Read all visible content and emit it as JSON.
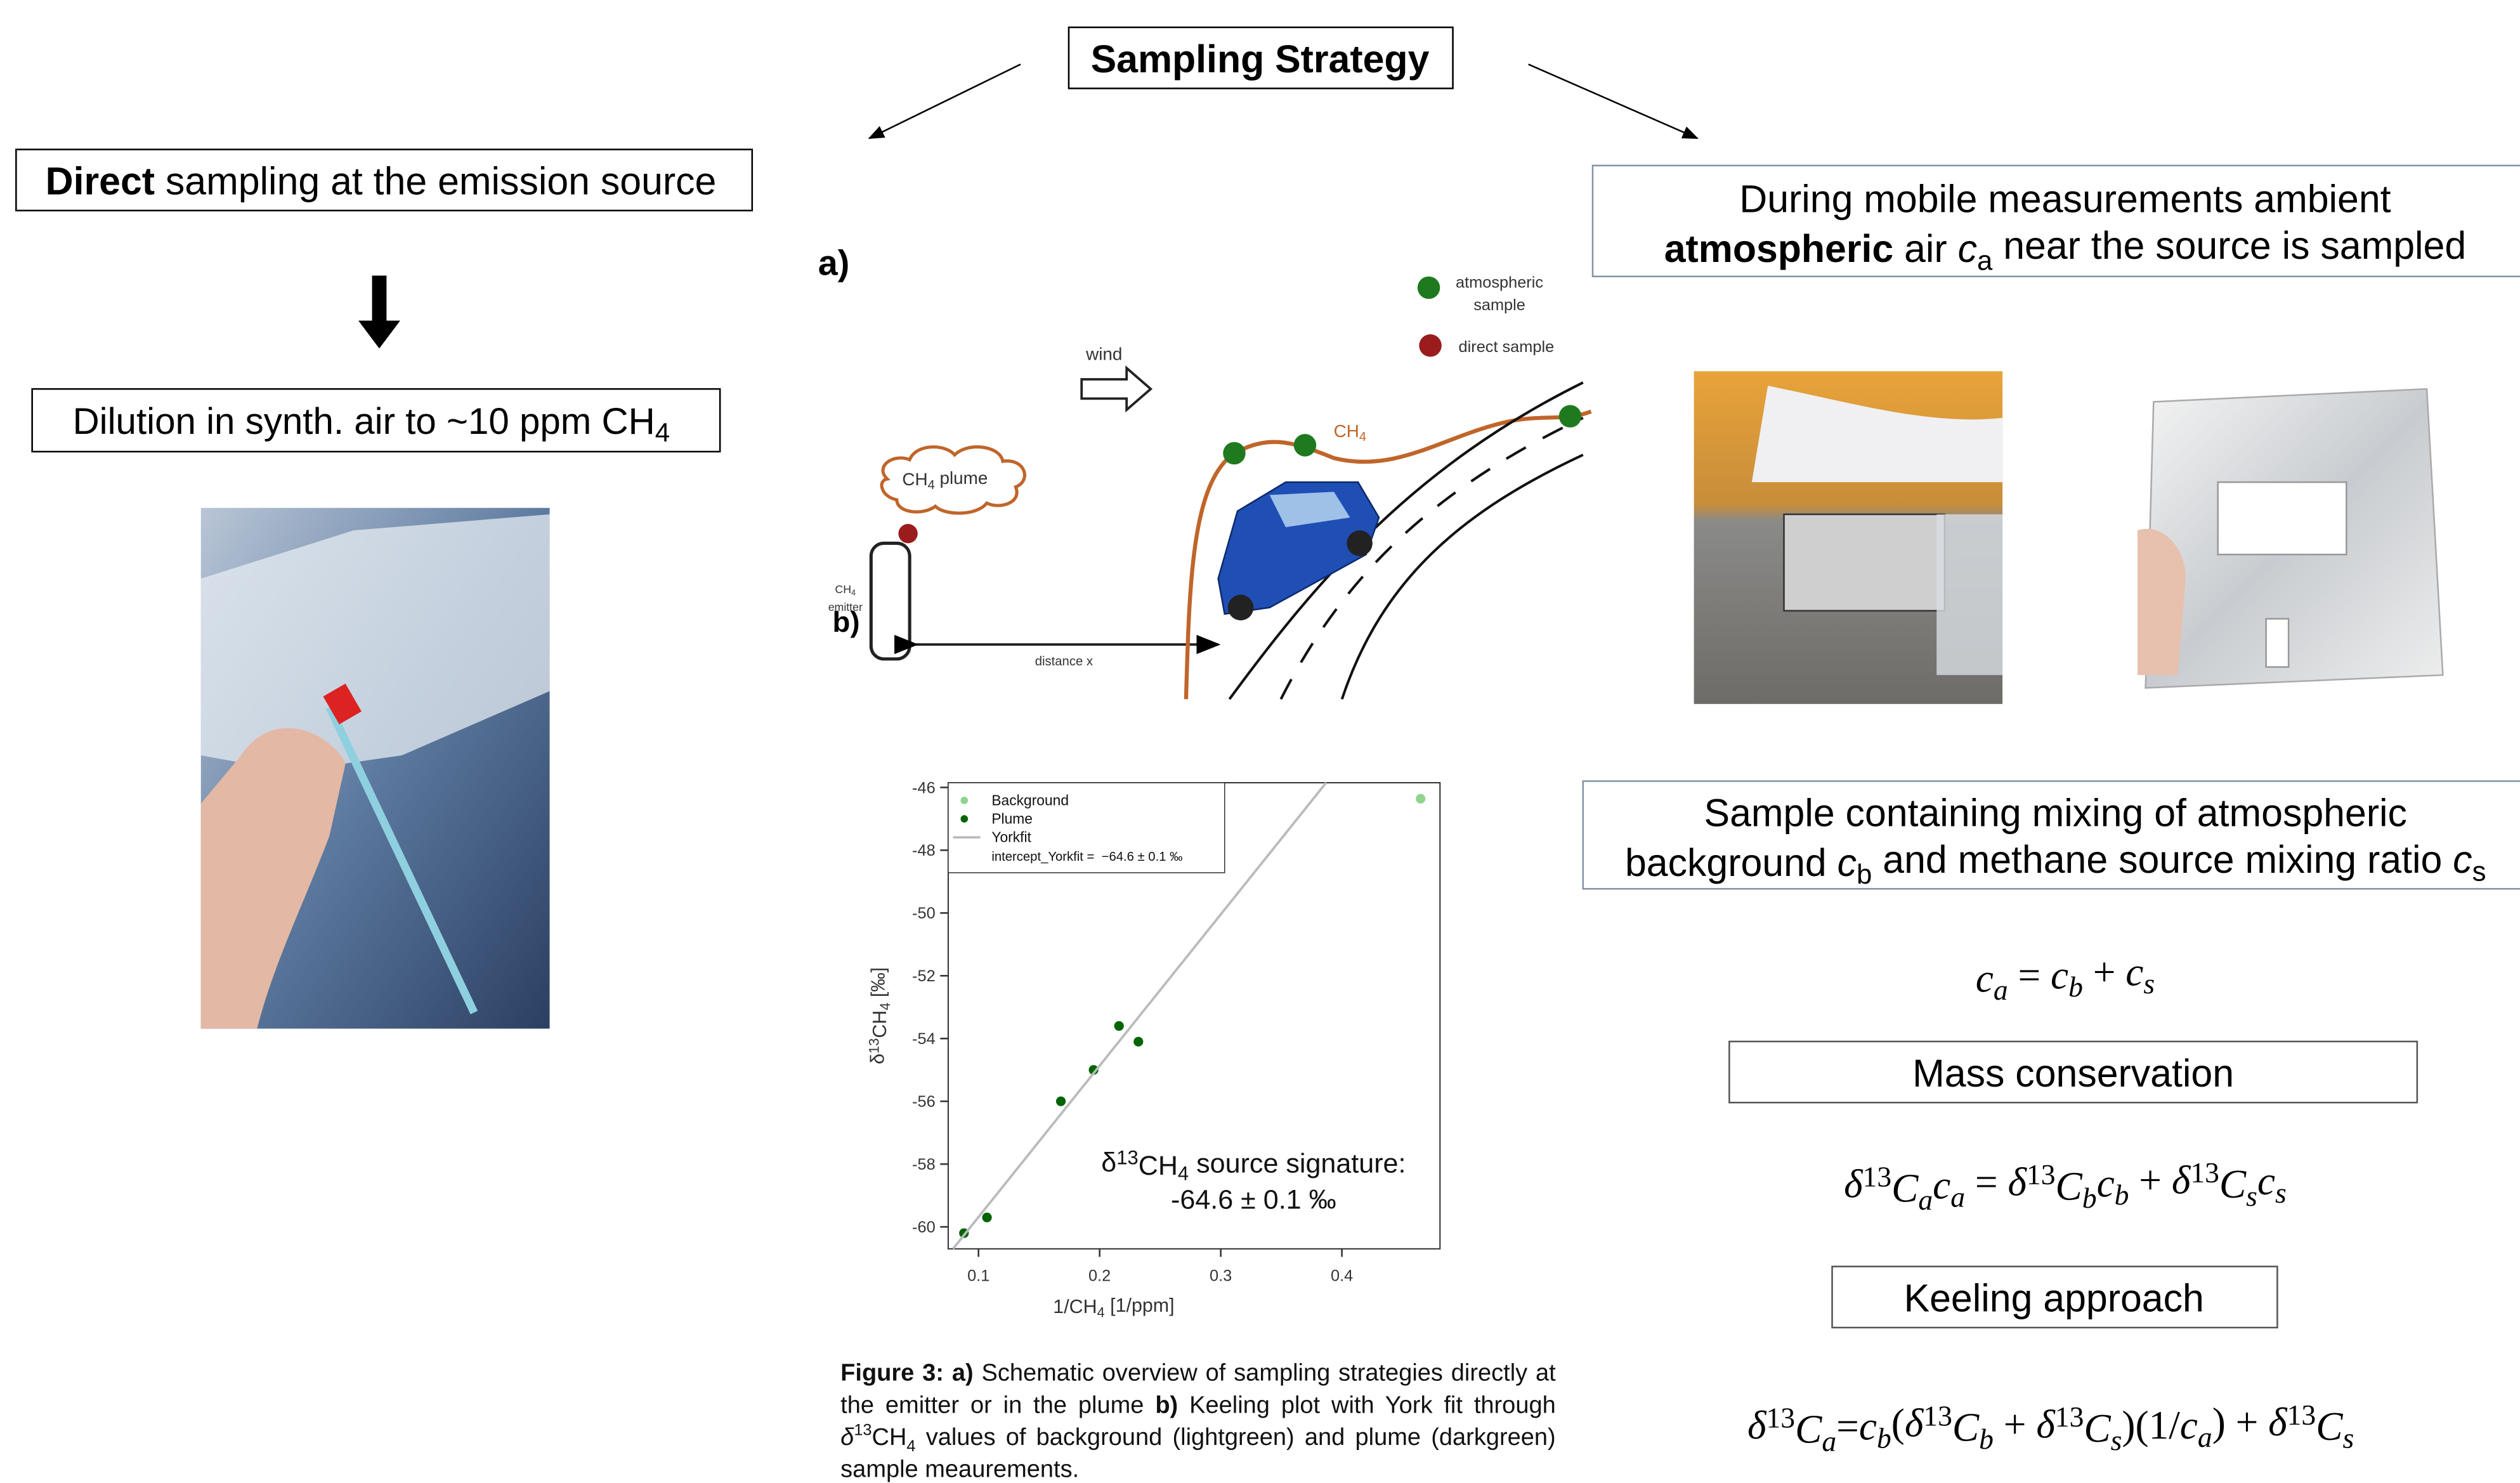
{
  "title": "Sampling Strategy",
  "left": {
    "heading": [
      {
        "bold": "Direct"
      },
      {
        "text": " sampling at the emission source"
      }
    ],
    "dilution": [
      {
        "text": "Dilution in synth. air to ~10 ppm CH"
      },
      {
        "sub": "4"
      }
    ]
  },
  "schematic": {
    "label": "a)",
    "legend": [
      [
        "atmospheric",
        "sample"
      ],
      [
        "direct sample"
      ]
    ],
    "wind": "wind",
    "gas": [
      {
        "text": "CH"
      },
      {
        "sub": "4"
      }
    ],
    "plume": [
      {
        "text": "CH"
      },
      {
        "sub": "4"
      },
      {
        "text": " plume"
      }
    ],
    "emitter": [
      [
        "CH",
        {
          "sub": "4"
        }
      ],
      "emitter"
    ],
    "distance": "distance x"
  },
  "chart_data": {
    "type": "scatter",
    "label": "b)",
    "xlabel": [
      {
        "text": "1/CH"
      },
      {
        "sub": "4"
      },
      {
        "text": " [1/ppm]"
      }
    ],
    "ylabel": [
      {
        "text": "δ"
      },
      {
        "sup": "13"
      },
      {
        "text": "CH"
      },
      {
        "sub": "4"
      },
      {
        "text": " [‰]"
      }
    ],
    "xlim": [
      0.075,
      0.481
    ],
    "ylim": [
      -60.7,
      -45.85
    ],
    "xticks": [
      0.1,
      0.2,
      0.3,
      0.4
    ],
    "yticks": [
      -46,
      -48,
      -50,
      -52,
      -54,
      -56,
      -58,
      -60
    ],
    "series": [
      {
        "name": "Background",
        "color": "#8fd48f",
        "x": [
          0.465
        ],
        "values": [
          -46.36
        ]
      },
      {
        "name": "Plume",
        "color": "#006400",
        "x": [
          0.088,
          0.107,
          0.168,
          0.195,
          0.216,
          0.232
        ],
        "values": [
          -60.2,
          -59.7,
          -56.0,
          -55.0,
          -53.6,
          -54.1
        ]
      },
      {
        "name": "Yorkfit",
        "color": "#bbbbbb",
        "type": "line",
        "x": [
          0.079,
          0.387
        ],
        "values": [
          -60.7,
          -45.85
        ]
      }
    ],
    "fit_label": "intercept_Yorkfit =  −64.6 ± 0.1 ‰",
    "annotation": [
      [
        {
          "text": "δ"
        },
        {
          "sup": "13"
        },
        {
          "text": "CH"
        },
        {
          "sub": "4"
        },
        {
          "text": " source signature:"
        }
      ],
      [
        {
          "text": "-64.6 ± 0.1 ‰"
        }
      ]
    ]
  },
  "caption": [
    {
      "bold": "Figure 3: a)"
    },
    {
      "text": " Schematic overview of sampling strategies directly at the emitter or in the plume "
    },
    {
      "bold": "b)"
    },
    {
      "text": " Keeling plot with York fit through "
    },
    {
      "i": "δ"
    },
    {
      "sup": "13"
    },
    {
      "text": "CH"
    },
    {
      "sub": "4"
    },
    {
      "text": " values of background (lightgreen) and plume (darkgreen) sample meaurements."
    }
  ],
  "right": {
    "heading": [
      [
        {
          "text": "During mobile measurements ambient"
        }
      ],
      [
        {
          "bold": "atmospheric"
        },
        {
          "text": " air "
        },
        {
          "i": "c"
        },
        {
          "sub": "a"
        },
        {
          "text": " near the source is sampled"
        }
      ]
    ],
    "sample": [
      [
        {
          "text": "Sample containing mixing of atmospheric"
        }
      ],
      [
        {
          "text": "background "
        },
        {
          "i": "c"
        },
        {
          "sub": "b"
        },
        {
          "text": " and methane source mixing ratio "
        },
        {
          "i": "c"
        },
        {
          "sub": "s"
        }
      ]
    ],
    "eq1": [
      {
        "i": "c"
      },
      {
        "sub": "a"
      },
      {
        "text": " = "
      },
      {
        "i": "c"
      },
      {
        "sub": "b"
      },
      {
        "text": " + "
      },
      {
        "i": "c"
      },
      {
        "sub": "s"
      }
    ],
    "mass": "Mass conservation",
    "eq2": [
      {
        "i": "δ"
      },
      {
        "sup": "13"
      },
      {
        "i": "C"
      },
      {
        "sub": "a"
      },
      {
        "i": "c"
      },
      {
        "sub": "a"
      },
      {
        "text": " = "
      },
      {
        "i": "δ"
      },
      {
        "sup": "13"
      },
      {
        "i": "C"
      },
      {
        "sub": "b"
      },
      {
        "i": "c"
      },
      {
        "sub": "b"
      },
      {
        "text": " + "
      },
      {
        "i": "δ"
      },
      {
        "sup": "13"
      },
      {
        "i": "C"
      },
      {
        "sub": "s"
      },
      {
        "i": "c"
      },
      {
        "sub": "s"
      }
    ],
    "keeling": "Keeling approach",
    "eq3": [
      {
        "i": "δ"
      },
      {
        "sup": "13"
      },
      {
        "i": "C"
      },
      {
        "sub": "a"
      },
      {
        "text": "="
      },
      {
        "i": "c"
      },
      {
        "sub": "b"
      },
      {
        "text": "("
      },
      {
        "i": "δ"
      },
      {
        "sup": "13"
      },
      {
        "i": "C"
      },
      {
        "sub": "b"
      },
      {
        "text": " + "
      },
      {
        "i": "δ"
      },
      {
        "sup": "13"
      },
      {
        "i": "C"
      },
      {
        "sub": "s"
      },
      {
        "text": ")(1/"
      },
      {
        "i": "c"
      },
      {
        "sub": "a"
      },
      {
        "text": ") + "
      },
      {
        "i": "δ"
      },
      {
        "sup": "13"
      },
      {
        "i": "C"
      },
      {
        "sub": "s"
      }
    ]
  }
}
